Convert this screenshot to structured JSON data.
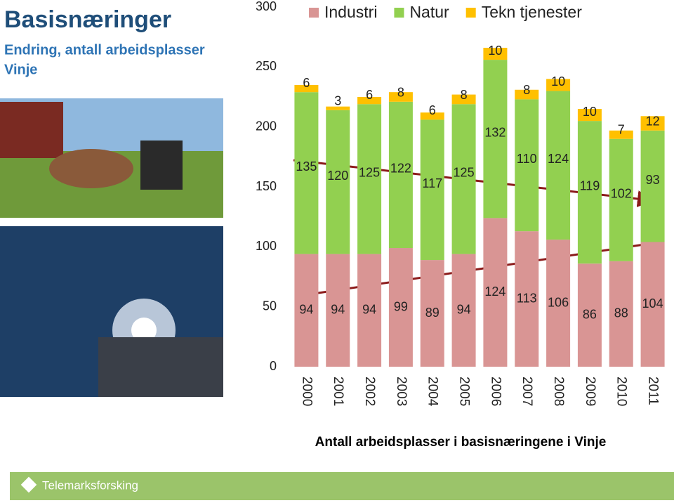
{
  "header": {
    "title": "Basisnæringer",
    "subtitle": [
      "Endring,  antall arbeidsplasser",
      "Vinje"
    ]
  },
  "chart_data": {
    "type": "stacked_bar",
    "x_label": "Antall arbeidsplasser i basisnæringene i Vinje",
    "categories": [
      "2000",
      "2001",
      "2002",
      "2003",
      "2004",
      "2005",
      "2006",
      "2007",
      "2008",
      "2009",
      "2010",
      "2011"
    ],
    "series": [
      {
        "name": "Industri",
        "color": "#d99594",
        "values": [
          94,
          94,
          94,
          99,
          89,
          94,
          124,
          113,
          106,
          86,
          88,
          104
        ]
      },
      {
        "name": "Natur",
        "color": "#92d050",
        "values": [
          135,
          120,
          125,
          122,
          117,
          125,
          132,
          110,
          124,
          119,
          102,
          93
        ]
      },
      {
        "name": "Tekn tjenester",
        "color": "#ffc000",
        "values": [
          6,
          3,
          6,
          8,
          6,
          8,
          10,
          8,
          10,
          10,
          7,
          12
        ]
      }
    ],
    "ylim": [
      0,
      300
    ],
    "yticks": [
      0,
      50,
      100,
      150,
      200,
      250,
      300
    ],
    "grid": false
  },
  "footer": {
    "logo": "Telemarksforsking"
  }
}
